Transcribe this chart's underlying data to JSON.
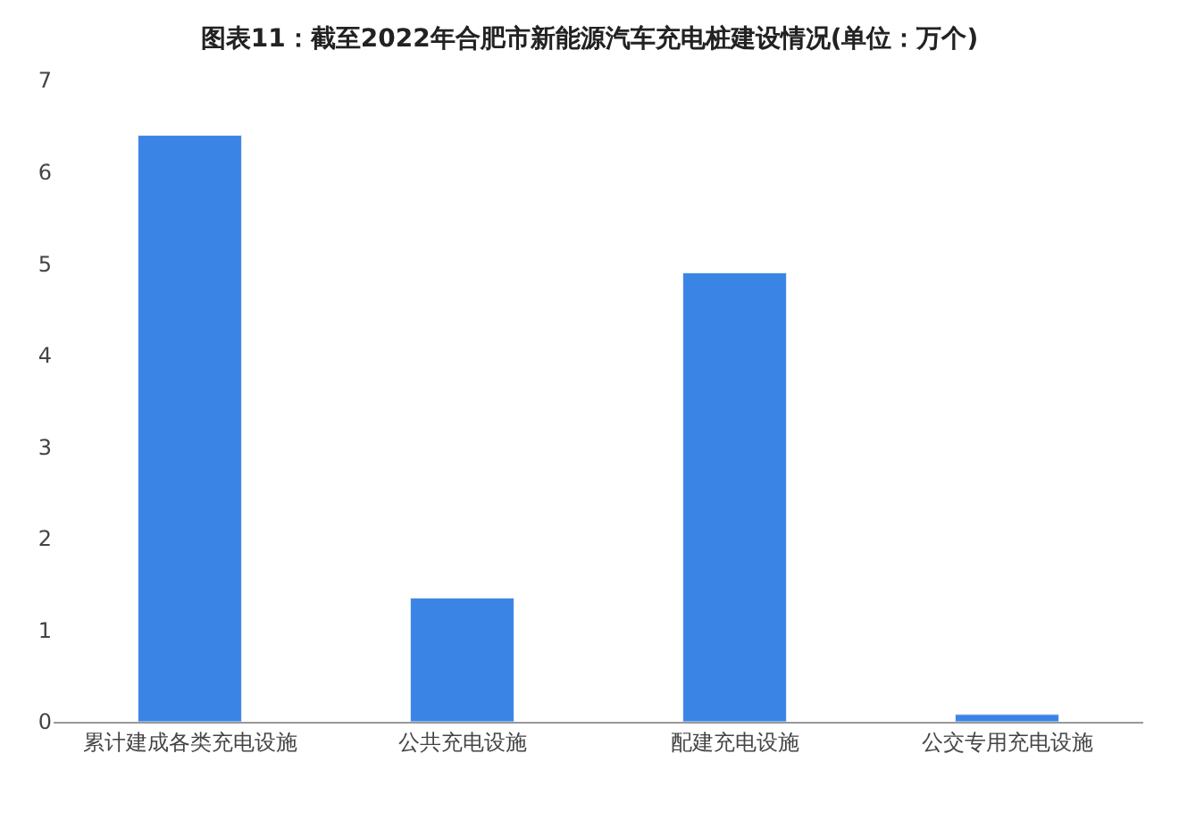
{
  "chart_data": {
    "type": "bar",
    "title": "图表11：截至2022年合肥市新能源汽车充电桩建设情况(单位：万个)",
    "categories": [
      "累计建成各类充电设施",
      "公共充电设施",
      "配建充电设施",
      "公交专用充电设施"
    ],
    "values": [
      6.4,
      1.35,
      4.9,
      0.08
    ],
    "color": "#3a84e6",
    "ylim": [
      0,
      7
    ],
    "yticks": [
      0,
      1,
      2,
      3,
      4,
      5,
      6,
      7
    ]
  }
}
